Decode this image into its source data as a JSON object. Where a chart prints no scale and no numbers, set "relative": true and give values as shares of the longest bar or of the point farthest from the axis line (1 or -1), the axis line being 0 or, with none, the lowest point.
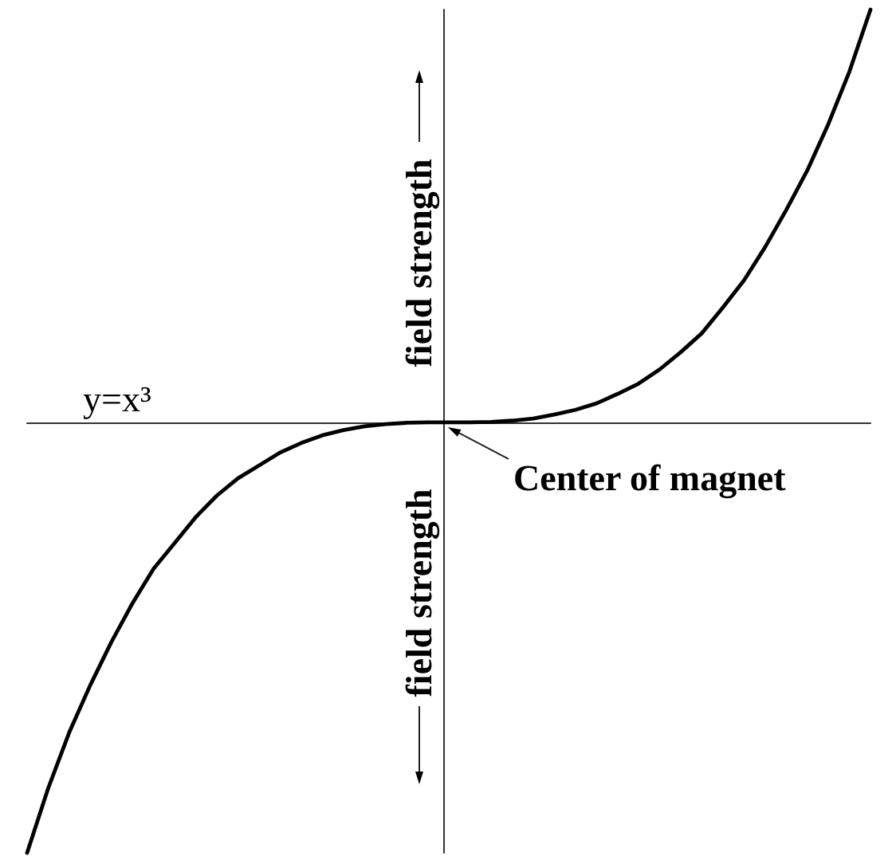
{
  "chart_data": {
    "type": "line",
    "relative": true,
    "categories": [
      null,
      null,
      null,
      null,
      null,
      null,
      null,
      null,
      null,
      null,
      null,
      null,
      null,
      null,
      null,
      null,
      null,
      null,
      null,
      null,
      null,
      null,
      null,
      null,
      null,
      null,
      null,
      null,
      null,
      null,
      null,
      null,
      null,
      null,
      null,
      null,
      null,
      null,
      null,
      null,
      null
    ],
    "series": [
      {
        "color": "#000000",
        "values": [
          -1,
          -0.85,
          -0.72,
          -0.61,
          -0.51,
          -0.42,
          -0.34,
          -0.28,
          -0.22,
          -0.17,
          -0.13,
          -0.1,
          -0.07,
          -0.048,
          -0.03,
          -0.018,
          -0.009,
          -0.004,
          -0.001,
          0,
          0,
          0,
          0.001,
          0.004,
          0.009,
          0.018,
          0.029,
          0.044,
          0.066,
          0.09,
          0.123,
          0.163,
          0.207,
          0.267,
          0.33,
          0.407,
          0.493,
          0.585,
          0.693,
          0.815,
          0.959
        ]
      }
    ],
    "marker": "none",
    "tick_labels": false,
    "annotations": [
      "y=x³",
      "field strength",
      "field strength",
      "Center of magnet"
    ]
  }
}
